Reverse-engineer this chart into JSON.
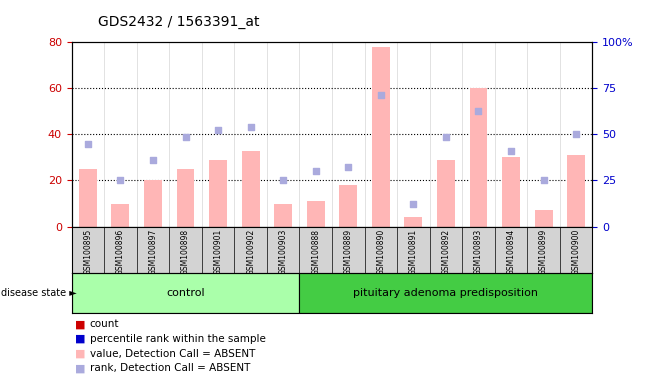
{
  "title": "GDS2432 / 1563391_at",
  "samples": [
    "GSM100895",
    "GSM100896",
    "GSM100897",
    "GSM100898",
    "GSM100901",
    "GSM100902",
    "GSM100903",
    "GSM100888",
    "GSM100889",
    "GSM100890",
    "GSM100891",
    "GSM100892",
    "GSM100893",
    "GSM100894",
    "GSM100899",
    "GSM100900"
  ],
  "groups": [
    "control",
    "control",
    "control",
    "control",
    "control",
    "control",
    "control",
    "pituitary adenoma predisposition",
    "pituitary adenoma predisposition",
    "pituitary adenoma predisposition",
    "pituitary adenoma predisposition",
    "pituitary adenoma predisposition",
    "pituitary adenoma predisposition",
    "pituitary adenoma predisposition",
    "pituitary adenoma predisposition",
    "pituitary adenoma predisposition"
  ],
  "pink_bars": [
    25,
    10,
    20,
    25,
    29,
    33,
    10,
    11,
    18,
    78,
    4,
    29,
    60,
    30,
    7,
    31
  ],
  "blue_squares": [
    36,
    20,
    29,
    39,
    42,
    43,
    20,
    24,
    26,
    57,
    10,
    39,
    50,
    33,
    20,
    40
  ],
  "left_ylim": [
    0,
    80
  ],
  "right_ylim": [
    0,
    100
  ],
  "left_yticks": [
    0,
    20,
    40,
    60,
    80
  ],
  "right_yticks": [
    0,
    25,
    50,
    75,
    100
  ],
  "right_yticklabels": [
    "0",
    "25",
    "50",
    "75",
    "100%"
  ],
  "left_ycolor": "#cc0000",
  "right_ycolor": "#0000cc",
  "grid_values": [
    20,
    40,
    60
  ],
  "control_color": "#aaffaa",
  "adenoma_color": "#44cc44",
  "bar_color": "#ffb6b6",
  "dot_color": "#aaaadd",
  "background_color": "#ffffff",
  "xtick_bg_color": "#d3d3d3",
  "legend_items": [
    {
      "label": "count",
      "color": "#cc0000"
    },
    {
      "label": "percentile rank within the sample",
      "color": "#0000cc"
    },
    {
      "label": "value, Detection Call = ABSENT",
      "color": "#ffb6b6"
    },
    {
      "label": "rank, Detection Call = ABSENT",
      "color": "#aaaadd"
    }
  ]
}
